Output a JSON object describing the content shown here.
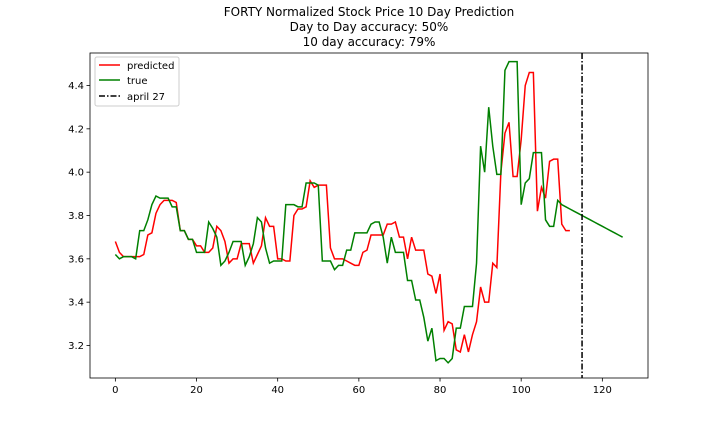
{
  "chart_data": {
    "type": "line",
    "title": "FORTY Normalized Stock Price 10 Day Prediction",
    "subtitle_lines": [
      "Day to Day accuracy: 50%",
      "10 day accuracy: 79%"
    ],
    "xlabel": "",
    "ylabel": "",
    "xlim": [
      -6.25,
      131.25
    ],
    "ylim": [
      3.05,
      4.55
    ],
    "xticks": [
      0,
      20,
      40,
      60,
      80,
      100,
      120
    ],
    "yticks": [
      3.2,
      3.4,
      3.6,
      3.8,
      4.0,
      4.2,
      4.4
    ],
    "ytick_labels": [
      "3.2",
      "3.4",
      "3.6",
      "3.8",
      "4.0",
      "4.2",
      "4.4"
    ],
    "grid": false,
    "legend_position": "top-left",
    "series": [
      {
        "name": "predicted",
        "color": "#ff0000",
        "style": "solid",
        "x": [
          0,
          1,
          2,
          3,
          4,
          5,
          6,
          7,
          8,
          9,
          10,
          11,
          12,
          13,
          14,
          15,
          16,
          17,
          18,
          19,
          20,
          21,
          22,
          23,
          24,
          25,
          26,
          27,
          28,
          29,
          30,
          31,
          32,
          33,
          34,
          35,
          36,
          37,
          38,
          39,
          40,
          41,
          42,
          43,
          44,
          45,
          46,
          47,
          48,
          49,
          50,
          51,
          52,
          53,
          54,
          55,
          56,
          57,
          58,
          59,
          60,
          61,
          62,
          63,
          64,
          65,
          66,
          67,
          68,
          69,
          70,
          71,
          72,
          73,
          74,
          75,
          76,
          77,
          78,
          79,
          80,
          81,
          82,
          83,
          84,
          85,
          86,
          87,
          88,
          89,
          90,
          91,
          92,
          93,
          94,
          95,
          96,
          97,
          98,
          99,
          100,
          101,
          102,
          103,
          104,
          105,
          106,
          107,
          108,
          109,
          110,
          111,
          112,
          113,
          114,
          115,
          116,
          117,
          118,
          119,
          120,
          121,
          122,
          123,
          124,
          125
        ],
        "values": [
          3.68,
          3.63,
          3.61,
          3.61,
          3.61,
          3.61,
          3.61,
          3.62,
          3.71,
          3.72,
          3.81,
          3.85,
          3.87,
          3.87,
          3.87,
          3.86,
          3.73,
          3.73,
          3.69,
          3.69,
          3.66,
          3.66,
          3.63,
          3.63,
          3.65,
          3.75,
          3.73,
          3.68,
          3.58,
          3.6,
          3.6,
          3.67,
          3.67,
          3.67,
          3.58,
          3.62,
          3.66,
          3.79,
          3.75,
          3.75,
          3.6,
          3.6,
          3.59,
          3.59,
          3.8,
          3.83,
          3.83,
          3.84,
          3.96,
          3.93,
          3.94,
          3.94,
          3.94,
          3.65,
          3.6,
          3.6,
          3.6,
          3.59,
          3.58,
          3.57,
          3.57,
          3.63,
          3.64,
          3.71,
          3.71,
          3.71,
          3.71,
          3.76,
          3.76,
          3.77,
          3.7,
          3.7,
          3.6,
          3.7,
          3.64,
          3.64,
          3.64,
          3.53,
          3.52,
          3.44,
          3.53,
          3.27,
          3.31,
          3.3,
          3.18,
          3.17,
          3.25,
          3.17,
          3.25,
          3.31,
          3.47,
          3.4,
          3.4,
          3.58,
          3.56,
          4.0,
          4.18,
          4.23,
          3.98,
          3.98,
          4.15,
          4.4,
          4.46,
          4.46,
          3.82,
          3.93,
          3.88,
          4.05,
          4.06,
          4.06,
          3.76,
          3.73,
          3.73,
          null,
          null,
          null,
          null,
          null,
          null,
          null,
          null,
          null,
          null,
          null,
          null,
          null
        ]
      },
      {
        "name": "true",
        "color": "#008000",
        "style": "solid",
        "x": [
          0,
          1,
          2,
          3,
          4,
          5,
          6,
          7,
          8,
          9,
          10,
          11,
          12,
          13,
          14,
          15,
          16,
          17,
          18,
          19,
          20,
          21,
          22,
          23,
          24,
          25,
          26,
          27,
          28,
          29,
          30,
          31,
          32,
          33,
          34,
          35,
          36,
          37,
          38,
          39,
          40,
          41,
          42,
          43,
          44,
          45,
          46,
          47,
          48,
          49,
          50,
          51,
          52,
          53,
          54,
          55,
          56,
          57,
          58,
          59,
          60,
          61,
          62,
          63,
          64,
          65,
          66,
          67,
          68,
          69,
          70,
          71,
          72,
          73,
          74,
          75,
          76,
          77,
          78,
          79,
          80,
          81,
          82,
          83,
          84,
          85,
          86,
          87,
          88,
          89,
          90,
          91,
          92,
          93,
          94,
          95,
          96,
          97,
          98,
          99,
          100,
          101,
          102,
          103,
          104,
          105,
          106,
          107,
          108,
          109,
          110,
          111,
          112,
          113,
          114,
          115,
          116,
          117,
          118,
          119,
          120,
          121,
          122,
          123,
          124,
          125
        ],
        "values": [
          3.62,
          3.6,
          3.61,
          3.61,
          3.61,
          3.6,
          3.73,
          3.73,
          3.78,
          3.85,
          3.89,
          3.88,
          3.88,
          3.88,
          3.84,
          3.84,
          3.73,
          3.73,
          3.69,
          3.69,
          3.63,
          3.63,
          3.63,
          3.77,
          3.74,
          3.7,
          3.57,
          3.59,
          3.63,
          3.68,
          3.68,
          3.68,
          3.57,
          3.61,
          3.67,
          3.79,
          3.77,
          3.65,
          3.58,
          3.59,
          3.59,
          3.59,
          3.85,
          3.85,
          3.85,
          3.84,
          3.84,
          3.95,
          3.95,
          3.95,
          3.94,
          3.59,
          3.59,
          3.59,
          3.55,
          3.57,
          3.57,
          3.64,
          3.64,
          3.72,
          3.72,
          3.72,
          3.72,
          3.76,
          3.77,
          3.77,
          3.7,
          3.58,
          3.7,
          3.63,
          3.63,
          3.63,
          3.5,
          3.5,
          3.41,
          3.41,
          3.33,
          3.22,
          3.28,
          3.13,
          3.14,
          3.14,
          3.12,
          3.14,
          3.28,
          3.28,
          3.38,
          3.38,
          3.38,
          3.58,
          4.12,
          4.0,
          4.3,
          4.12,
          3.99,
          3.99,
          4.47,
          4.51,
          4.51,
          4.51,
          3.85,
          3.95,
          3.97,
          4.09,
          4.09,
          4.09,
          3.78,
          3.75,
          3.75,
          3.87,
          3.85,
          3.84,
          3.83,
          3.82,
          3.81,
          3.8,
          3.79,
          3.78,
          3.77,
          3.76,
          3.75,
          3.74,
          3.73,
          3.72,
          3.71,
          3.7
        ],
        "values_note_free": true
      }
    ],
    "vline": {
      "label": "april 27",
      "x": 115,
      "color": "#000000",
      "style": "dashdot"
    }
  }
}
